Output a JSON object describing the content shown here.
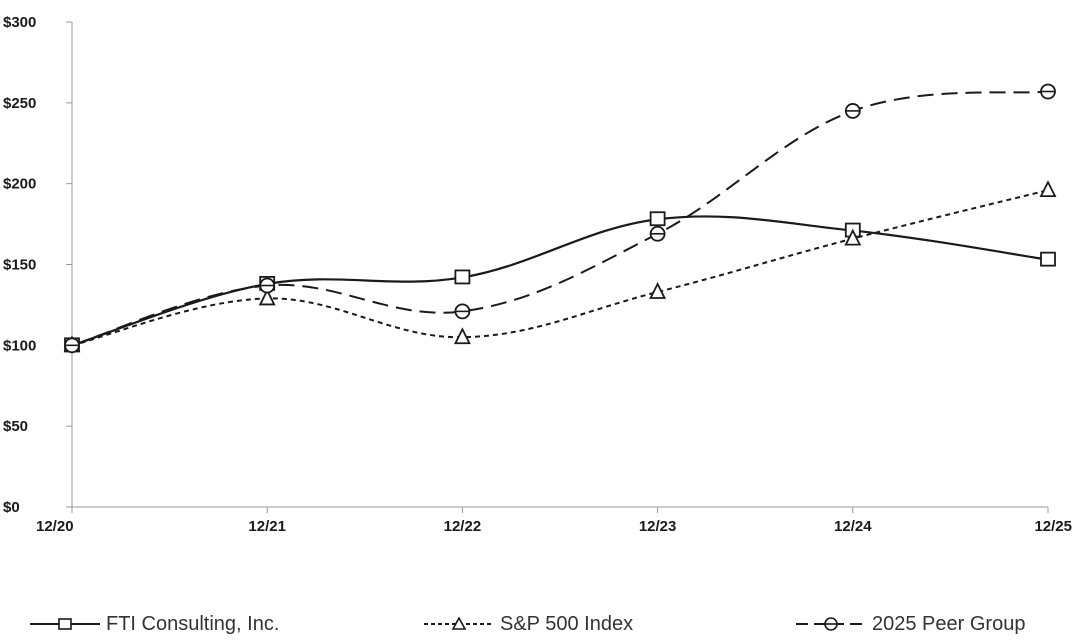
{
  "chart_data": {
    "type": "line",
    "title": "",
    "xlabel": "",
    "ylabel": "",
    "categories": [
      "12/20",
      "12/21",
      "12/22",
      "12/23",
      "12/24",
      "12/25"
    ],
    "y_ticks": [
      "$0",
      "$50",
      "$100",
      "$150",
      "$200",
      "$250",
      "$300"
    ],
    "ylim": [
      0,
      300
    ],
    "grid": false,
    "legend_position": "bottom",
    "series": [
      {
        "name": "FTI Consulting, Inc.",
        "marker": "square",
        "line_style": "solid",
        "values": [
          100,
          138,
          142,
          178,
          171,
          153
        ]
      },
      {
        "name": "S&P 500 Index",
        "marker": "triangle",
        "line_style": "dotted",
        "values": [
          100,
          129,
          105,
          133,
          166,
          196
        ]
      },
      {
        "name": "2025 Peer Group",
        "marker": "circle",
        "line_style": "dashed",
        "values": [
          100,
          137,
          121,
          169,
          245,
          257
        ]
      }
    ],
    "colors": {
      "lines": "#1a1a1a",
      "axis": "#999999"
    }
  }
}
